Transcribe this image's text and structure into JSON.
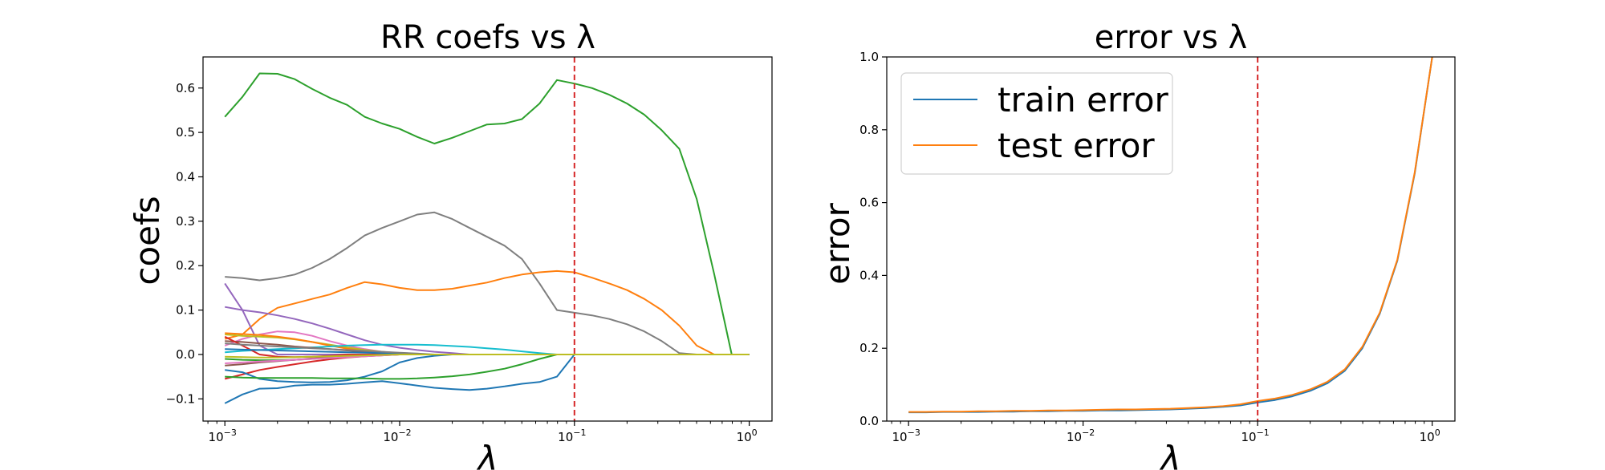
{
  "chart_data": [
    {
      "type": "line",
      "title": "RR coefs vs λ",
      "xlabel": "λ",
      "ylabel": "coefs",
      "xscale": "log",
      "xlim": [
        0.00075,
        1.35
      ],
      "ylim": [
        -0.15,
        0.67
      ],
      "grid": false,
      "xticks": [
        {
          "value": 0.001,
          "base": "10",
          "exp": "−3"
        },
        {
          "value": 0.01,
          "base": "10",
          "exp": "−2"
        },
        {
          "value": 0.1,
          "base": "10",
          "exp": "−1"
        },
        {
          "value": 1,
          "base": "10",
          "exp": "0"
        }
      ],
      "yticks": [
        {
          "value": -0.1,
          "label": "−0.1"
        },
        {
          "value": 0.0,
          "label": "0.0"
        },
        {
          "value": 0.1,
          "label": "0.1"
        },
        {
          "value": 0.2,
          "label": "0.2"
        },
        {
          "value": 0.3,
          "label": "0.3"
        },
        {
          "value": 0.4,
          "label": "0.4"
        },
        {
          "value": 0.5,
          "label": "0.5"
        },
        {
          "value": 0.6,
          "label": "0.6"
        }
      ],
      "vline": {
        "x": 0.1,
        "color": "#d62728",
        "style": "dashed"
      },
      "x": [
        0.001,
        0.00126,
        0.00158,
        0.002,
        0.00251,
        0.00316,
        0.00398,
        0.00501,
        0.00631,
        0.00794,
        0.01,
        0.0126,
        0.0158,
        0.02,
        0.0251,
        0.0316,
        0.0398,
        0.0501,
        0.0631,
        0.0794,
        0.1,
        0.126,
        0.158,
        0.2,
        0.251,
        0.316,
        0.398,
        0.501,
        0.631,
        0.794,
        1.0
      ],
      "series": [
        {
          "color": "#2ca02c",
          "values": [
            0.535,
            0.58,
            0.633,
            0.632,
            0.62,
            0.598,
            0.578,
            0.562,
            0.535,
            0.52,
            0.508,
            0.49,
            0.475,
            0.488,
            0.503,
            0.518,
            0.52,
            0.53,
            0.565,
            0.618,
            0.61,
            0.6,
            0.585,
            0.565,
            0.54,
            0.505,
            0.463,
            0.35,
            0.18,
            0.0,
            0.0
          ]
        },
        {
          "color": "#7f7f7f",
          "values": [
            0.175,
            0.172,
            0.167,
            0.172,
            0.18,
            0.195,
            0.215,
            0.24,
            0.268,
            0.285,
            0.3,
            0.315,
            0.32,
            0.305,
            0.285,
            0.265,
            0.245,
            0.215,
            0.16,
            0.1,
            0.094,
            0.088,
            0.08,
            0.068,
            0.052,
            0.03,
            0.003,
            0.0,
            0.0,
            0.0,
            0.0
          ]
        },
        {
          "color": "#ff7f0e",
          "values": [
            0.035,
            0.045,
            0.08,
            0.105,
            0.115,
            0.125,
            0.135,
            0.15,
            0.163,
            0.158,
            0.15,
            0.145,
            0.145,
            0.148,
            0.155,
            0.162,
            0.172,
            0.18,
            0.185,
            0.188,
            0.185,
            0.173,
            0.16,
            0.145,
            0.125,
            0.1,
            0.065,
            0.02,
            0.0,
            0.0,
            0.0
          ]
        },
        {
          "color": "#9467bd",
          "values": [
            0.107,
            0.1,
            0.095,
            0.088,
            0.08,
            0.07,
            0.058,
            0.045,
            0.032,
            0.022,
            0.015,
            0.01,
            0.006,
            0.003,
            0.0,
            0.0,
            0.0,
            0.0,
            0.0,
            0.0,
            0.0,
            0.0,
            0.0,
            0.0,
            0.0,
            0.0,
            0.0,
            0.0,
            0.0,
            0.0,
            0.0
          ]
        },
        {
          "color": "#9467bd",
          "values": [
            0.16,
            0.1,
            0.02,
            0.0,
            0.0,
            0.0,
            0.0,
            0.0,
            0.0,
            0.0,
            0.0,
            0.0,
            0.0,
            0.0,
            0.0,
            0.0,
            0.0,
            0.0,
            0.0,
            0.0,
            0.0,
            0.0,
            0.0,
            0.0,
            0.0,
            0.0,
            0.0,
            0.0,
            0.0,
            0.0,
            0.0
          ]
        },
        {
          "color": "#e377c2",
          "values": [
            0.02,
            0.035,
            0.045,
            0.052,
            0.05,
            0.042,
            0.03,
            0.02,
            0.012,
            0.006,
            0.002,
            0.0,
            0.0,
            0.0,
            0.0,
            0.0,
            0.0,
            0.0,
            0.0,
            0.0,
            0.0,
            0.0,
            0.0,
            0.0,
            0.0,
            0.0,
            0.0,
            0.0,
            0.0,
            0.0,
            0.0
          ]
        },
        {
          "color": "#bcbd22",
          "values": [
            0.045,
            0.042,
            0.04,
            0.038,
            0.034,
            0.028,
            0.022,
            0.016,
            0.01,
            0.006,
            0.003,
            0.0,
            0.0,
            0.0,
            0.0,
            0.0,
            0.0,
            0.0,
            0.0,
            0.0,
            0.0,
            0.0,
            0.0,
            0.0,
            0.0,
            0.0,
            0.0,
            0.0,
            0.0,
            0.0,
            0.0
          ]
        },
        {
          "color": "#ff7f0e",
          "values": [
            0.048,
            0.046,
            0.044,
            0.04,
            0.035,
            0.028,
            0.02,
            0.013,
            0.007,
            0.003,
            0.0,
            0.0,
            0.0,
            0.0,
            0.0,
            0.0,
            0.0,
            0.0,
            0.0,
            0.0,
            0.0,
            0.0,
            0.0,
            0.0,
            0.0,
            0.0,
            0.0,
            0.0,
            0.0,
            0.0,
            0.0
          ]
        },
        {
          "color": "#17becf",
          "values": [
            0.005,
            0.008,
            0.01,
            0.012,
            0.014,
            0.016,
            0.018,
            0.02,
            0.021,
            0.022,
            0.022,
            0.022,
            0.021,
            0.019,
            0.017,
            0.014,
            0.011,
            0.007,
            0.003,
            0.0,
            0.0,
            0.0,
            0.0,
            0.0,
            0.0,
            0.0,
            0.0,
            0.0,
            0.0,
            0.0,
            0.0
          ]
        },
        {
          "color": "#8c564b",
          "values": [
            0.03,
            0.028,
            0.025,
            0.022,
            0.018,
            0.015,
            0.012,
            0.009,
            0.006,
            0.004,
            0.002,
            0.0,
            0.0,
            0.0,
            0.0,
            0.0,
            0.0,
            0.0,
            0.0,
            0.0,
            0.0,
            0.0,
            0.0,
            0.0,
            0.0,
            0.0,
            0.0,
            0.0,
            0.0,
            0.0,
            0.0
          ]
        },
        {
          "color": "#d62728",
          "values": [
            0.04,
            0.02,
            0.0,
            -0.005,
            -0.006,
            -0.005,
            -0.003,
            0.0,
            0.0,
            0.0,
            0.0,
            0.0,
            0.0,
            0.0,
            0.0,
            0.0,
            0.0,
            0.0,
            0.0,
            0.0,
            0.0,
            0.0,
            0.0,
            0.0,
            0.0,
            0.0,
            0.0,
            0.0,
            0.0,
            0.0,
            0.0
          ]
        },
        {
          "color": "#d62728",
          "values": [
            -0.055,
            -0.045,
            -0.035,
            -0.028,
            -0.022,
            -0.016,
            -0.011,
            -0.007,
            -0.004,
            -0.002,
            0.0,
            0.0,
            0.0,
            0.0,
            0.0,
            0.0,
            0.0,
            0.0,
            0.0,
            0.0,
            0.0,
            0.0,
            0.0,
            0.0,
            0.0,
            0.0,
            0.0,
            0.0,
            0.0,
            0.0,
            0.0
          ]
        },
        {
          "color": "#1f77b4",
          "values": [
            -0.11,
            -0.09,
            -0.077,
            -0.076,
            -0.07,
            -0.068,
            -0.068,
            -0.066,
            -0.063,
            -0.06,
            -0.065,
            -0.07,
            -0.075,
            -0.078,
            -0.08,
            -0.077,
            -0.072,
            -0.066,
            -0.062,
            -0.05,
            0.0,
            0.0,
            0.0,
            0.0,
            0.0,
            0.0,
            0.0,
            0.0,
            0.0,
            0.0,
            0.0
          ]
        },
        {
          "color": "#1f77b4",
          "values": [
            -0.035,
            -0.04,
            -0.055,
            -0.06,
            -0.062,
            -0.063,
            -0.062,
            -0.058,
            -0.05,
            -0.038,
            -0.018,
            -0.008,
            -0.003,
            0.0,
            0.0,
            0.0,
            0.0,
            0.0,
            0.0,
            0.0,
            0.0,
            0.0,
            0.0,
            0.0,
            0.0,
            0.0,
            0.0,
            0.0,
            0.0,
            0.0,
            0.0
          ]
        },
        {
          "color": "#2ca02c",
          "values": [
            -0.05,
            -0.052,
            -0.053,
            -0.053,
            -0.053,
            -0.053,
            -0.054,
            -0.054,
            -0.054,
            -0.055,
            -0.055,
            -0.054,
            -0.052,
            -0.049,
            -0.045,
            -0.039,
            -0.032,
            -0.022,
            -0.01,
            0.0,
            0.0,
            0.0,
            0.0,
            0.0,
            0.0,
            0.0,
            0.0,
            0.0,
            0.0,
            0.0,
            0.0
          ]
        },
        {
          "color": "#2ca02c",
          "values": [
            -0.01,
            -0.012,
            -0.013,
            -0.013,
            -0.012,
            -0.01,
            -0.008,
            -0.005,
            -0.003,
            -0.001,
            0.0,
            0.0,
            0.0,
            0.0,
            0.0,
            0.0,
            0.0,
            0.0,
            0.0,
            0.0,
            0.0,
            0.0,
            0.0,
            0.0,
            0.0,
            0.0,
            0.0,
            0.0,
            0.0,
            0.0,
            0.0
          ]
        },
        {
          "color": "#1f77b4",
          "values": [
            0.012,
            0.011,
            0.01,
            0.009,
            0.008,
            0.007,
            0.006,
            0.005,
            0.004,
            0.003,
            0.002,
            0.0,
            0.0,
            0.0,
            0.0,
            0.0,
            0.0,
            0.0,
            0.0,
            0.0,
            0.0,
            0.0,
            0.0,
            0.0,
            0.0,
            0.0,
            0.0,
            0.0,
            0.0,
            0.0,
            0.0
          ]
        },
        {
          "color": "#8c564b",
          "values": [
            -0.025,
            -0.022,
            -0.018,
            -0.015,
            -0.012,
            -0.009,
            -0.006,
            -0.004,
            -0.002,
            -0.001,
            0.0,
            0.0,
            0.0,
            0.0,
            0.0,
            0.0,
            0.0,
            0.0,
            0.0,
            0.0,
            0.0,
            0.0,
            0.0,
            0.0,
            0.0,
            0.0,
            0.0,
            0.0,
            0.0,
            0.0,
            0.0
          ]
        },
        {
          "color": "#e377c2",
          "values": [
            -0.02,
            -0.018,
            -0.016,
            -0.014,
            -0.012,
            -0.01,
            -0.008,
            -0.006,
            -0.004,
            -0.002,
            0.0,
            0.0,
            0.0,
            0.0,
            0.0,
            0.0,
            0.0,
            0.0,
            0.0,
            0.0,
            0.0,
            0.0,
            0.0,
            0.0,
            0.0,
            0.0,
            0.0,
            0.0,
            0.0,
            0.0,
            0.0
          ]
        },
        {
          "color": "#7f7f7f",
          "values": [
            0.025,
            0.022,
            0.02,
            0.018,
            0.016,
            0.014,
            0.012,
            0.01,
            0.008,
            0.006,
            0.004,
            0.002,
            0.0,
            0.0,
            0.0,
            0.0,
            0.0,
            0.0,
            0.0,
            0.0,
            0.0,
            0.0,
            0.0,
            0.0,
            0.0,
            0.0,
            0.0,
            0.0,
            0.0,
            0.0,
            0.0
          ]
        },
        {
          "color": "#bcbd22",
          "values": [
            -0.005,
            -0.006,
            -0.007,
            -0.007,
            -0.006,
            -0.005,
            -0.004,
            -0.003,
            -0.002,
            -0.001,
            0.0,
            0.0,
            0.0,
            0.0,
            0.0,
            0.0,
            0.0,
            0.0,
            0.0,
            0.0,
            0.0,
            0.0,
            0.0,
            0.0,
            0.0,
            0.0,
            0.0,
            0.0,
            0.0,
            0.0,
            0.0
          ]
        }
      ]
    },
    {
      "type": "line",
      "title": "error vs λ",
      "xlabel": "λ",
      "ylabel": "error",
      "xscale": "log",
      "xlim": [
        0.00075,
        1.35
      ],
      "ylim": [
        0.0,
        1.0
      ],
      "grid": false,
      "legend_position": "top-left",
      "xticks": [
        {
          "value": 0.001,
          "base": "10",
          "exp": "−3"
        },
        {
          "value": 0.01,
          "base": "10",
          "exp": "−2"
        },
        {
          "value": 0.1,
          "base": "10",
          "exp": "−1"
        },
        {
          "value": 1,
          "base": "10",
          "exp": "0"
        }
      ],
      "yticks": [
        {
          "value": 0.0,
          "label": "0.0"
        },
        {
          "value": 0.2,
          "label": "0.2"
        },
        {
          "value": 0.4,
          "label": "0.4"
        },
        {
          "value": 0.6,
          "label": "0.6"
        },
        {
          "value": 0.8,
          "label": "0.8"
        },
        {
          "value": 1.0,
          "label": "1.0"
        }
      ],
      "vline": {
        "x": 0.1,
        "color": "#d62728",
        "style": "dashed"
      },
      "x": [
        0.001,
        0.00126,
        0.00158,
        0.002,
        0.00251,
        0.00316,
        0.00398,
        0.00501,
        0.00631,
        0.00794,
        0.01,
        0.0126,
        0.0158,
        0.02,
        0.0251,
        0.0316,
        0.0398,
        0.0501,
        0.0631,
        0.0794,
        0.1,
        0.126,
        0.158,
        0.2,
        0.251,
        0.316,
        0.398,
        0.501,
        0.631,
        0.794,
        1.0
      ],
      "series": [
        {
          "name": "train error",
          "color": "#1f77b4",
          "values": [
            0.024,
            0.024,
            0.025,
            0.025,
            0.025,
            0.026,
            0.026,
            0.027,
            0.027,
            0.028,
            0.028,
            0.029,
            0.029,
            0.03,
            0.031,
            0.032,
            0.034,
            0.036,
            0.039,
            0.043,
            0.051,
            0.058,
            0.068,
            0.083,
            0.104,
            0.138,
            0.2,
            0.295,
            0.44,
            0.68,
            1.0
          ]
        },
        {
          "name": "test error",
          "color": "#ff7f0e",
          "values": [
            0.025,
            0.025,
            0.026,
            0.026,
            0.027,
            0.027,
            0.028,
            0.028,
            0.029,
            0.029,
            0.03,
            0.031,
            0.032,
            0.032,
            0.033,
            0.034,
            0.036,
            0.038,
            0.041,
            0.046,
            0.055,
            0.062,
            0.072,
            0.087,
            0.108,
            0.142,
            0.204,
            0.298,
            0.443,
            0.683,
            1.0
          ]
        }
      ]
    }
  ]
}
